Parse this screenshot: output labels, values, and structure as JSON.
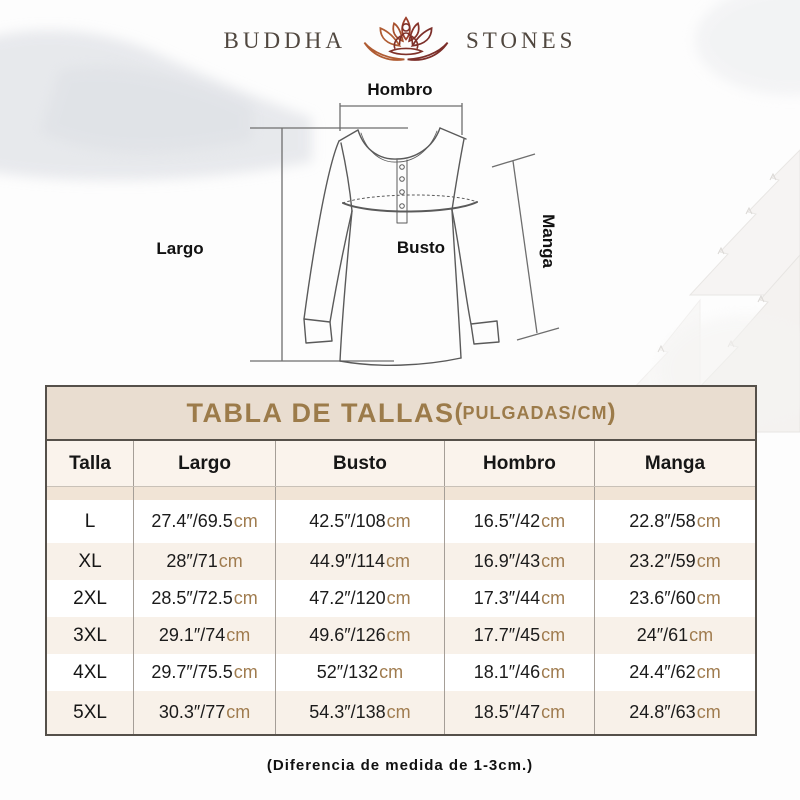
{
  "logo": {
    "left": "BUDDHA",
    "right": "STONES",
    "icon": "lotus-meditation-icon"
  },
  "diagram": {
    "labels": {
      "hombro": "Hombro",
      "largo": "Largo",
      "busto": "Busto",
      "manga": "Manga"
    }
  },
  "table": {
    "title": {
      "main": "TABLA DE TALLAS",
      "open": "(",
      "sub": "PULGADAS/CM",
      "close": ")"
    },
    "columns": [
      "Talla",
      "Largo",
      "Busto",
      "Hombro",
      "Manga"
    ],
    "unit": "cm",
    "rows": [
      {
        "size": "L",
        "values": [
          "27.4″/69.5",
          "42.5″/108",
          "16.5″/42",
          "22.8″/58"
        ]
      },
      {
        "size": "XL",
        "values": [
          "28″/71",
          "44.9″/114",
          "16.9″/43",
          "23.2″/59"
        ]
      },
      {
        "size": "2XL",
        "values": [
          "28.5″/72.5",
          "47.2″/120",
          "17.3″/44",
          "23.6″/60"
        ]
      },
      {
        "size": "3XL",
        "values": [
          "29.1″/74",
          "49.6″/126",
          "17.7″/45",
          "24″/61"
        ]
      },
      {
        "size": "4XL",
        "values": [
          "29.7″/75.5",
          "52″/132",
          "18.1″/46",
          "24.4″/62"
        ]
      },
      {
        "size": "5XL",
        "values": [
          "30.3″/77",
          "54.3″/138",
          "18.5″/47",
          "24.8″/63"
        ]
      }
    ]
  },
  "footer": {
    "note": "(Diferencia de medida de 1-3cm.)"
  },
  "colors": {
    "accent_brown": "#9c7b4a",
    "title_band_bg": "#e9ddd0",
    "alt_row_bg": "#f8f1e9",
    "spacer_bg": "#f1e4d6",
    "unit_text": "#a07c4f",
    "lotus_orange": "#a85632",
    "lotus_maroon": "#7c2f2a"
  }
}
